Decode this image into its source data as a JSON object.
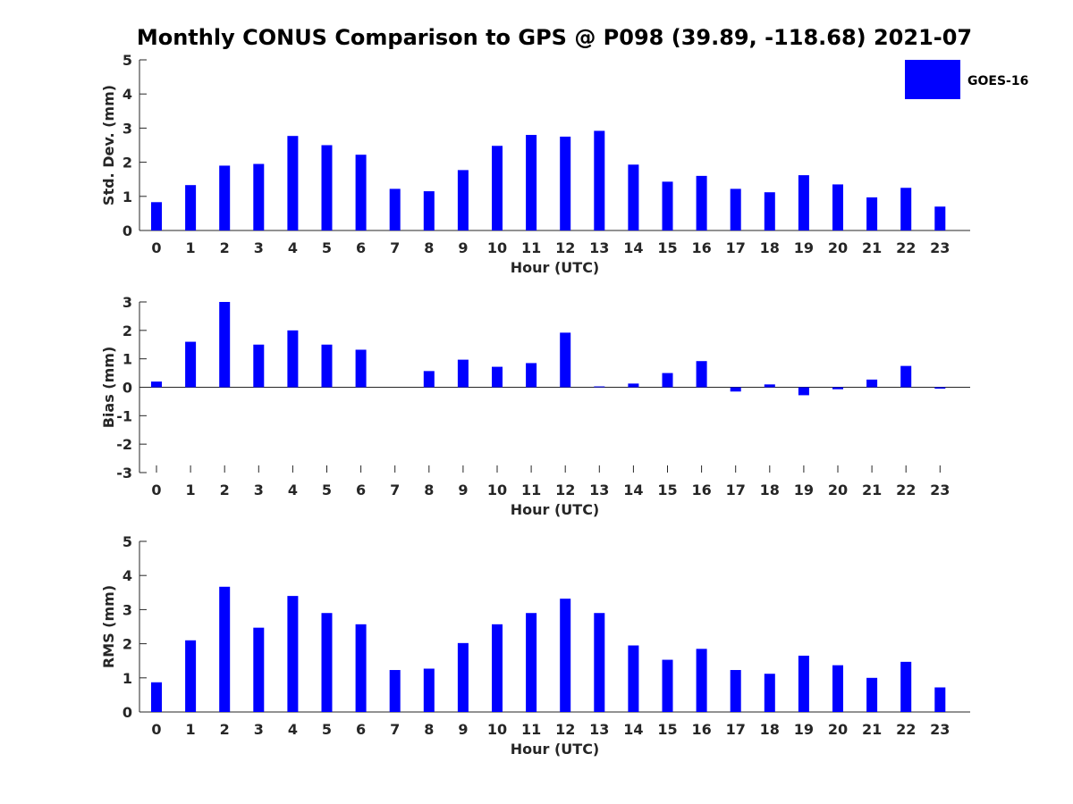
{
  "title": "Monthly CONUS Comparison to GPS @ P098 (39.89, -118.68) 2021-07",
  "legend": {
    "label": "GOES-16",
    "color": "#0000ff"
  },
  "chart_data": [
    {
      "type": "bar",
      "name": "std",
      "xlabel": "Hour (UTC)",
      "ylabel": "Std. Dev. (mm)",
      "ylim": [
        0,
        5
      ],
      "yticks": [
        0,
        1,
        2,
        3,
        4,
        5
      ],
      "categories": [
        "0",
        "1",
        "2",
        "3",
        "4",
        "5",
        "6",
        "7",
        "8",
        "9",
        "10",
        "11",
        "12",
        "13",
        "14",
        "15",
        "16",
        "17",
        "18",
        "19",
        "20",
        "21",
        "22",
        "23"
      ],
      "series": [
        {
          "values": [
            0.83,
            1.33,
            1.9,
            1.95,
            2.77,
            2.5,
            2.22,
            1.22,
            1.15,
            1.77,
            2.48,
            2.8,
            2.75,
            2.92,
            1.93,
            1.43,
            1.6,
            1.22,
            1.12,
            1.62,
            1.35,
            0.97,
            1.25,
            0.7
          ]
        }
      ],
      "legend_position": "top-right"
    },
    {
      "type": "bar",
      "name": "bias",
      "xlabel": "Hour (UTC)",
      "ylabel": "Bias (mm)",
      "ylim": [
        -3,
        3
      ],
      "yticks": [
        -3,
        -2,
        -1,
        0,
        1,
        2,
        3
      ],
      "categories": [
        "0",
        "1",
        "2",
        "3",
        "4",
        "5",
        "6",
        "7",
        "8",
        "9",
        "10",
        "11",
        "12",
        "13",
        "14",
        "15",
        "16",
        "17",
        "18",
        "19",
        "20",
        "21",
        "22",
        "23"
      ],
      "series": [
        {
          "values": [
            0.2,
            1.6,
            3.0,
            1.5,
            2.0,
            1.5,
            1.32,
            0.0,
            0.57,
            0.97,
            0.72,
            0.85,
            1.92,
            0.03,
            0.13,
            0.5,
            0.92,
            -0.15,
            0.1,
            -0.28,
            -0.07,
            0.27,
            0.75,
            -0.05
          ]
        }
      ]
    },
    {
      "type": "bar",
      "name": "rms",
      "xlabel": "Hour (UTC)",
      "ylabel": "RMS (mm)",
      "ylim": [
        0,
        5
      ],
      "yticks": [
        0,
        1,
        2,
        3,
        4,
        5
      ],
      "categories": [
        "0",
        "1",
        "2",
        "3",
        "4",
        "5",
        "6",
        "7",
        "8",
        "9",
        "10",
        "11",
        "12",
        "13",
        "14",
        "15",
        "16",
        "17",
        "18",
        "19",
        "20",
        "21",
        "22",
        "23"
      ],
      "series": [
        {
          "values": [
            0.87,
            2.1,
            3.67,
            2.47,
            3.4,
            2.9,
            2.57,
            1.23,
            1.27,
            2.02,
            2.57,
            2.9,
            3.32,
            2.9,
            1.95,
            1.53,
            1.85,
            1.23,
            1.12,
            1.65,
            1.37,
            1.0,
            1.47,
            0.72
          ]
        }
      ]
    }
  ]
}
